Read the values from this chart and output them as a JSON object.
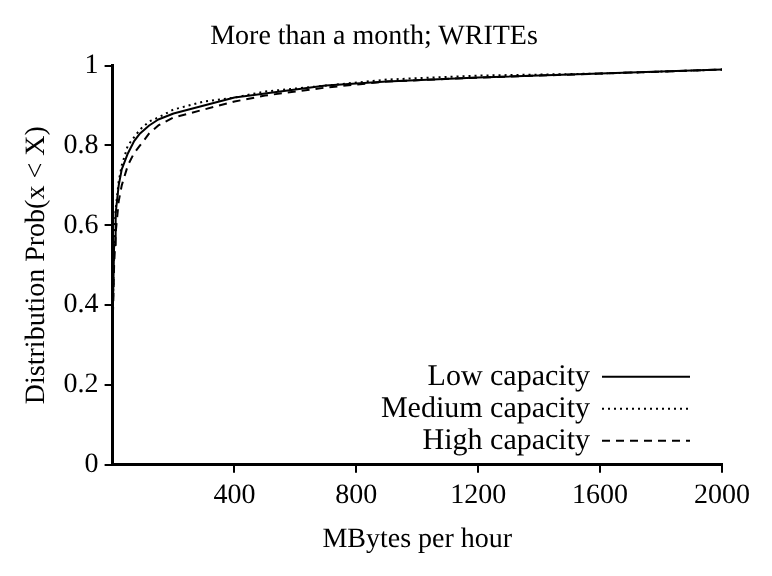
{
  "chart_data": {
    "type": "line",
    "title": "More than a month; WRITEs",
    "xlabel": "MBytes per hour",
    "ylabel": "Distribution Prob(x < X)",
    "x": [
      0,
      5,
      10,
      20,
      30,
      50,
      70,
      90,
      120,
      150,
      200,
      300,
      400,
      500,
      700,
      900,
      1200,
      1600,
      2000
    ],
    "series": [
      {
        "name": "Low capacity",
        "color": "#000000",
        "line_style": "solid",
        "values": [
          0.35,
          0.55,
          0.63,
          0.7,
          0.74,
          0.78,
          0.81,
          0.83,
          0.85,
          0.865,
          0.88,
          0.9,
          0.92,
          0.93,
          0.95,
          0.96,
          0.97,
          0.98,
          0.99
        ]
      },
      {
        "name": "Medium capacity",
        "color": "#000000",
        "line_style": "dotted",
        "values": [
          0.36,
          0.56,
          0.64,
          0.71,
          0.75,
          0.8,
          0.82,
          0.84,
          0.86,
          0.87,
          0.89,
          0.91,
          0.92,
          0.935,
          0.95,
          0.965,
          0.975,
          0.98,
          0.99
        ]
      },
      {
        "name": "High capacity",
        "color": "#000000",
        "line_style": "dashed",
        "values": [
          0.34,
          0.5,
          0.58,
          0.66,
          0.7,
          0.75,
          0.78,
          0.8,
          0.83,
          0.85,
          0.87,
          0.89,
          0.91,
          0.925,
          0.945,
          0.96,
          0.97,
          0.98,
          0.99
        ]
      }
    ],
    "xlim": [
      0,
      2000
    ],
    "xticks": [
      400,
      800,
      1200,
      1600,
      2000
    ],
    "ylim": [
      0,
      1
    ],
    "yticks": [
      0,
      0.2,
      0.4,
      0.6,
      0.8,
      1
    ],
    "grid": false,
    "legend": "bottom right",
    "marker": "none"
  }
}
